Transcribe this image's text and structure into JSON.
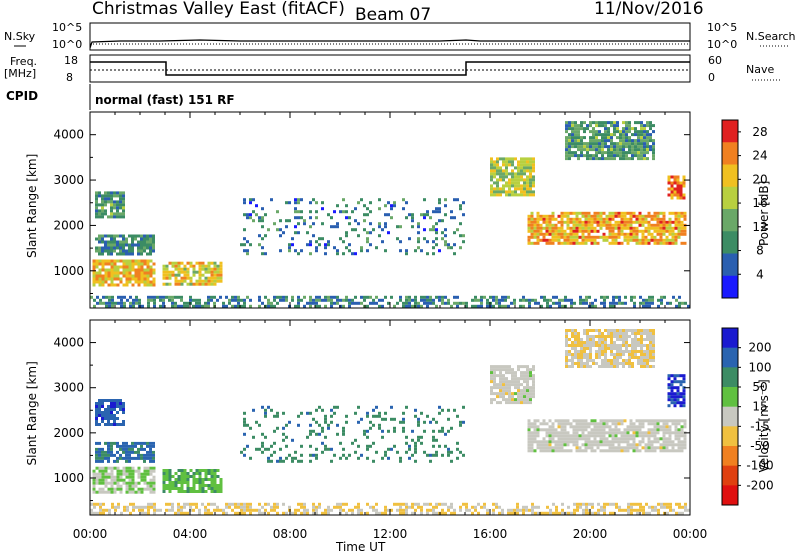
{
  "header": {
    "title": "Christmas Valley East (fitACF)",
    "beam": "Beam 07",
    "date": "11/Nov/2016"
  },
  "top_panels": {
    "nsky_label": "N.Sky",
    "nsearch_label": "N.Search",
    "noise_ticks_left": [
      "10^5",
      "10^0"
    ],
    "noise_ticks_right": [
      "10^5",
      "10^0"
    ],
    "freq_label": "Freq.",
    "freq_unit": "[MHz]",
    "freq_ticks": [
      "18",
      "8"
    ],
    "nave_label": "Nave",
    "nave_ticks": [
      "60",
      "0"
    ],
    "cpid_label": "CPID",
    "cpid_text": "normal (fast) 151 RF"
  },
  "chart_data": [
    {
      "type": "heatmap",
      "title": "",
      "xlabel": "Time UT",
      "ylabel": "Slant Range [km]",
      "x_ticks": [
        "00:00",
        "04:00",
        "08:00",
        "12:00",
        "16:00",
        "20:00",
        "00:00"
      ],
      "xlim_hours": [
        0,
        24
      ],
      "y_ticks": [
        1000,
        2000,
        3000,
        4000
      ],
      "ylim_km": [
        180,
        4500
      ],
      "colorbar": {
        "label": "Power [dB]",
        "ticks": [
          4,
          8,
          12,
          16,
          20,
          24,
          28
        ],
        "range": [
          0,
          30
        ],
        "colors": [
          "#1a1aff",
          "#2a5fb0",
          "#3c8c64",
          "#6aa868",
          "#b8d040",
          "#f0c020",
          "#f08020",
          "#e02020"
        ]
      },
      "regions": [
        {
          "t0": 0.2,
          "t1": 1.4,
          "r0": 2200,
          "r1": 2750,
          "power": 11
        },
        {
          "t0": 0.2,
          "t1": 2.5,
          "r0": 1350,
          "r1": 1800,
          "power": 10
        },
        {
          "t0": 0.1,
          "t1": 2.6,
          "r0": 700,
          "r1": 1250,
          "power": 21
        },
        {
          "t0": 2.9,
          "t1": 5.2,
          "r0": 700,
          "r1": 1200,
          "power": 19
        },
        {
          "t0": 16.0,
          "t1": 17.8,
          "r0": 2700,
          "r1": 3500,
          "power": 17
        },
        {
          "t0": 17.5,
          "t1": 23.8,
          "r0": 1600,
          "r1": 2300,
          "power": 22
        },
        {
          "t0": 19.0,
          "t1": 22.5,
          "r0": 3500,
          "r1": 4300,
          "power": 11
        },
        {
          "t0": 23.1,
          "t1": 23.8,
          "r0": 2600,
          "r1": 3100,
          "power": 24
        },
        {
          "t0": 6.0,
          "t1": 15.0,
          "r0": 1400,
          "r1": 2600,
          "power": 8
        },
        {
          "t0": 0.0,
          "t1": 24.0,
          "r0": 200,
          "r1": 450,
          "power": 9
        }
      ]
    },
    {
      "type": "heatmap",
      "title": "",
      "xlabel": "Time UT",
      "ylabel": "Slant Range [km]",
      "x_ticks": [
        "00:00",
        "04:00",
        "08:00",
        "12:00",
        "16:00",
        "20:00",
        "00:00"
      ],
      "xlim_hours": [
        0,
        24
      ],
      "y_ticks": [
        1000,
        2000,
        3000,
        4000
      ],
      "ylim_km": [
        180,
        4500
      ],
      "colorbar": {
        "label": "Velocity [m s⁻¹]",
        "ticks": [
          200,
          100,
          50,
          15,
          -15,
          -50,
          -100,
          -200
        ],
        "range": [
          -250,
          250
        ],
        "colors": [
          "#1a1ad0",
          "#2a64b0",
          "#3c8c64",
          "#60c040",
          "#c8c8c0",
          "#f0c040",
          "#f08020",
          "#e04010",
          "#e01010"
        ]
      },
      "regions": [
        {
          "t0": 0.2,
          "t1": 1.4,
          "r0": 2200,
          "r1": 2750,
          "velocity": 180
        },
        {
          "t0": 0.2,
          "t1": 2.5,
          "r0": 1350,
          "r1": 1800,
          "velocity": 150
        },
        {
          "t0": 0.1,
          "t1": 2.6,
          "r0": 700,
          "r1": 1250,
          "velocity": 30
        },
        {
          "t0": 2.9,
          "t1": 5.2,
          "r0": 700,
          "r1": 1200,
          "velocity": 70
        },
        {
          "t0": 16.0,
          "t1": 17.8,
          "r0": 2700,
          "r1": 3500,
          "velocity": 0
        },
        {
          "t0": 17.5,
          "t1": 23.8,
          "r0": 1600,
          "r1": 2300,
          "velocity": 0
        },
        {
          "t0": 19.0,
          "t1": 22.5,
          "r0": 3500,
          "r1": 4300,
          "velocity": -20
        },
        {
          "t0": 23.1,
          "t1": 23.8,
          "r0": 2600,
          "r1": 3300,
          "velocity": 200
        },
        {
          "t0": 6.0,
          "t1": 15.0,
          "r0": 1400,
          "r1": 2600,
          "velocity": 120
        },
        {
          "t0": 0.0,
          "t1": 24.0,
          "r0": 200,
          "r1": 450,
          "velocity": -30
        }
      ]
    }
  ]
}
